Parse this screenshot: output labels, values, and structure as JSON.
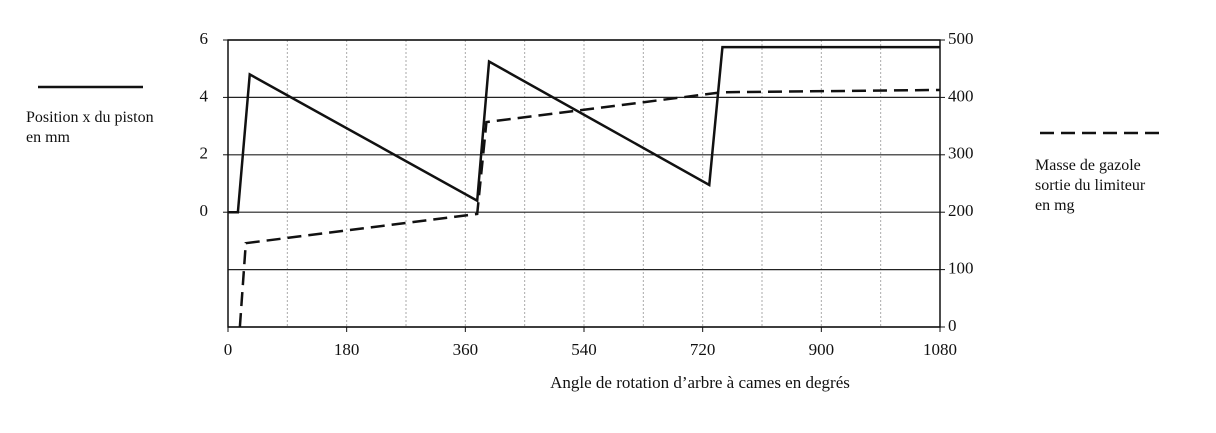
{
  "chart_data": {
    "type": "line",
    "x_label": "Angle de rotation d’arbre à cames en degrés",
    "xlim": [
      0,
      1080
    ],
    "xticks": [
      0,
      180,
      360,
      540,
      720,
      900,
      1080
    ],
    "x_minor_grid": [
      90,
      270,
      450,
      630,
      810,
      990
    ],
    "ylim": [
      -4,
      6
    ],
    "yticks": [
      0,
      2,
      4,
      6
    ],
    "y2lim": [
      0,
      500
    ],
    "y2ticks": [
      0,
      100,
      200,
      300,
      400,
      500
    ],
    "grid": true,
    "series": [
      {
        "name": "Position x du piston en mm",
        "color": "#111111",
        "style": "solid",
        "axis": "y",
        "x": [
          0,
          15,
          33,
          378,
          396,
          730,
          750,
          1080
        ],
        "values": [
          0,
          0,
          4.8,
          0.4,
          5.25,
          0.95,
          5.75,
          5.75
        ]
      },
      {
        "name": "Masse de gazole sortie du limiteur en mg",
        "color": "#111111",
        "style": "dashed",
        "axis": "y2",
        "x": [
          18,
          27,
          378,
          392,
          750,
          1080
        ],
        "values": [
          0,
          146,
          197,
          357,
          409,
          413
        ]
      }
    ]
  }
}
